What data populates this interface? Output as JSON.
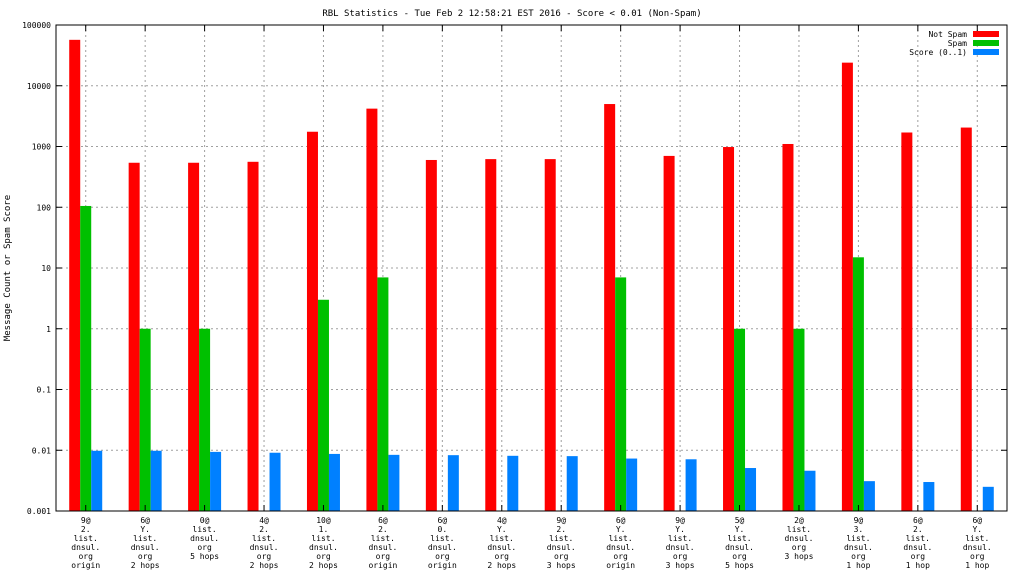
{
  "chart_data": {
    "type": "bar",
    "title": "RBL Statistics - Tue Feb  2 12:58:21 EST 2016 - Score < 0.01 (Non-Spam)",
    "xlabel": "",
    "ylabel": "Message Count or Spam Score",
    "y_scale": "log",
    "ylim": [
      0.001,
      100000
    ],
    "y_ticks": [
      "0.001",
      "0.01",
      "0.1",
      "1",
      "10",
      "100",
      "1000",
      "10000",
      "100000"
    ],
    "grid": true,
    "legend_position": "top-right",
    "categories": [
      [
        "9@",
        "2.",
        "list.",
        "dnsul.",
        "org",
        "origin"
      ],
      [
        "6@",
        "Y.",
        "list.",
        "dnsul.",
        "org",
        "2 hops"
      ],
      [
        "0@",
        "list.",
        "dnsul.",
        "org",
        "5 hops"
      ],
      [
        "4@",
        "2.",
        "list.",
        "dnsul.",
        "org",
        "2 hops"
      ],
      [
        "10@",
        "1.",
        "list.",
        "dnsul.",
        "org",
        "2 hops"
      ],
      [
        "6@",
        "2.",
        "list.",
        "dnsul.",
        "org",
        "origin"
      ],
      [
        "6@",
        "0.",
        "list.",
        "dnsul.",
        "org",
        "origin"
      ],
      [
        "4@",
        "Y.",
        "list.",
        "dnsul.",
        "org",
        "2 hops"
      ],
      [
        "9@",
        "2.",
        "list.",
        "dnsul.",
        "org",
        "3 hops"
      ],
      [
        "6@",
        "Y.",
        "list.",
        "dnsul.",
        "org",
        "origin"
      ],
      [
        "9@",
        "Y.",
        "list.",
        "dnsul.",
        "org",
        "3 hops"
      ],
      [
        "5@",
        "Y.",
        "list.",
        "dnsul.",
        "org",
        "5 hops"
      ],
      [
        "2@",
        "list.",
        "dnsul.",
        "org",
        "3 hops"
      ],
      [
        "9@",
        "3.",
        "list.",
        "dnsul.",
        "org",
        "1 hop"
      ],
      [
        "6@",
        "2.",
        "list.",
        "dnsul.",
        "org",
        "1 hop"
      ],
      [
        "6@",
        "Y.",
        "list.",
        "dnsul.",
        "org",
        "1 hop"
      ]
    ],
    "series": [
      {
        "name": "Not Spam",
        "color": "#ff0000",
        "values": [
          57000,
          540,
          540,
          560,
          1750,
          4200,
          600,
          620,
          620,
          5000,
          700,
          980,
          1100,
          24000,
          1700,
          2050
        ]
      },
      {
        "name": "Spam",
        "color": "#00c000",
        "values": [
          105,
          1,
          1,
          null,
          3,
          7,
          null,
          null,
          null,
          7,
          null,
          1,
          1,
          15,
          null,
          null
        ]
      },
      {
        "name": "Score (0..1)",
        "color": "#0080ff",
        "values": [
          0.0098,
          0.0098,
          0.0094,
          0.0091,
          0.0087,
          0.0084,
          0.0083,
          0.0081,
          0.008,
          0.0073,
          0.0071,
          0.0051,
          0.0046,
          0.0031,
          0.003,
          0.0025
        ]
      }
    ]
  }
}
